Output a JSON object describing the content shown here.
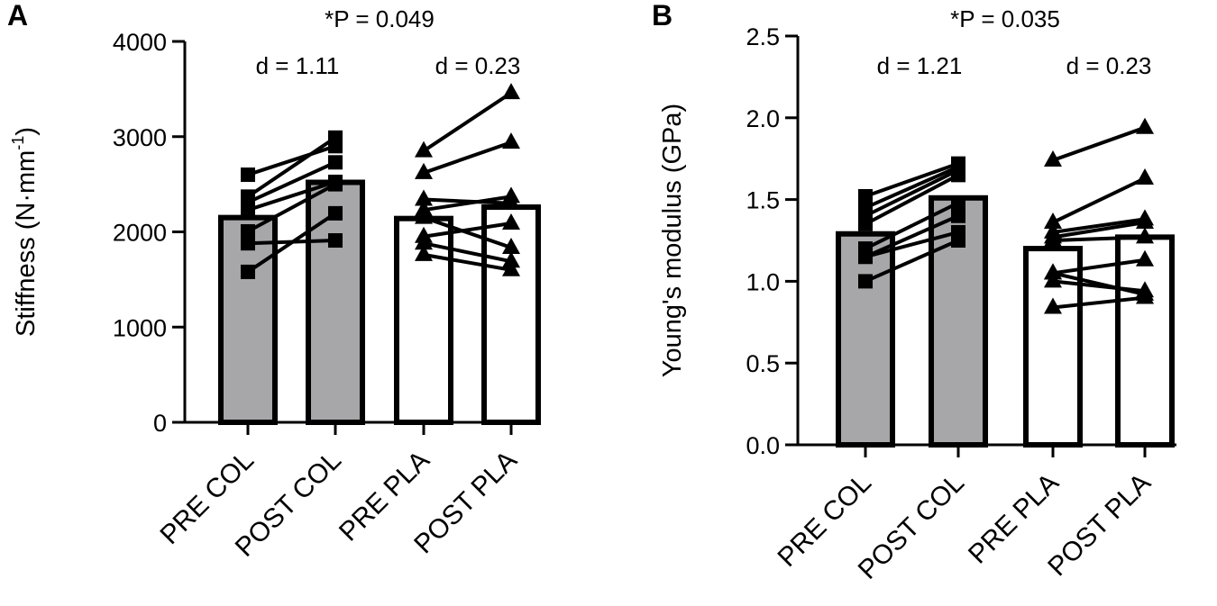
{
  "chart_data": [
    {
      "type": "bar",
      "panel_label": "A",
      "ylabel": "Stiffness (N·mm",
      "ylabel_sup": "-1",
      "ylabel_close": ")",
      "ylim": [
        0,
        4000
      ],
      "yticks": [
        0,
        1000,
        2000,
        3000,
        4000
      ],
      "categories": [
        "PRE COL",
        "POST COL",
        "PRE PLA",
        "POST PLA"
      ],
      "bar_values": [
        2150,
        2520,
        2140,
        2260
      ],
      "bar_fills": [
        "#a7a7aa",
        "#a7a7aa",
        "#ffffff",
        "#ffffff"
      ],
      "annotation_p": "*P = 0.049",
      "effect_sizes": [
        "d = 1.11",
        "d = 0.23"
      ],
      "paired": [
        {
          "marker": "square",
          "pairs": [
            [
              2600,
              2900
            ],
            [
              2370,
              2990
            ],
            [
              2310,
              2730
            ],
            [
              2230,
              2525
            ],
            [
              2005,
              2500
            ],
            [
              1880,
              1910
            ],
            [
              1580,
              2195
            ]
          ]
        },
        {
          "marker": "triangle",
          "pairs": [
            [
              2850,
              3460
            ],
            [
              2620,
              2940
            ],
            [
              2340,
              2300
            ],
            [
              2230,
              2370
            ],
            [
              2150,
              1835
            ],
            [
              1950,
              2090
            ],
            [
              1880,
              1690
            ],
            [
              1760,
              1600
            ]
          ]
        }
      ]
    },
    {
      "type": "bar",
      "panel_label": "B",
      "ylabel": "Young's modulus (GPa)",
      "ylim": [
        0,
        2.5
      ],
      "yticks": [
        "0.0",
        "0.5",
        "1.0",
        "1.5",
        "2.0",
        "2.5"
      ],
      "categories": [
        "PRE COL",
        "POST COL",
        "PRE PLA",
        "POST PLA"
      ],
      "bar_values": [
        1.29,
        1.51,
        1.2,
        1.27
      ],
      "bar_fills": [
        "#a7a7aa",
        "#a7a7aa",
        "#ffffff",
        "#ffffff"
      ],
      "annotation_p": "*P = 0.035",
      "effect_sizes": [
        "d = 1.21",
        "d = 0.23"
      ],
      "paired": [
        {
          "marker": "square",
          "pairs": [
            [
              1.52,
              1.72
            ],
            [
              1.45,
              1.7
            ],
            [
              1.4,
              1.68
            ],
            [
              1.35,
              1.65
            ],
            [
              1.2,
              1.48
            ],
            [
              1.15,
              1.4
            ],
            [
              1.15,
              1.3
            ],
            [
              1.0,
              1.25
            ]
          ]
        },
        {
          "marker": "triangle",
          "pairs": [
            [
              1.74,
              1.94
            ],
            [
              1.36,
              1.63
            ],
            [
              1.3,
              1.38
            ],
            [
              1.27,
              1.36
            ],
            [
              1.25,
              1.27
            ],
            [
              1.05,
              1.13
            ],
            [
              1.05,
              0.92
            ],
            [
              1.0,
              0.94
            ],
            [
              0.84,
              0.9
            ]
          ]
        }
      ]
    }
  ]
}
